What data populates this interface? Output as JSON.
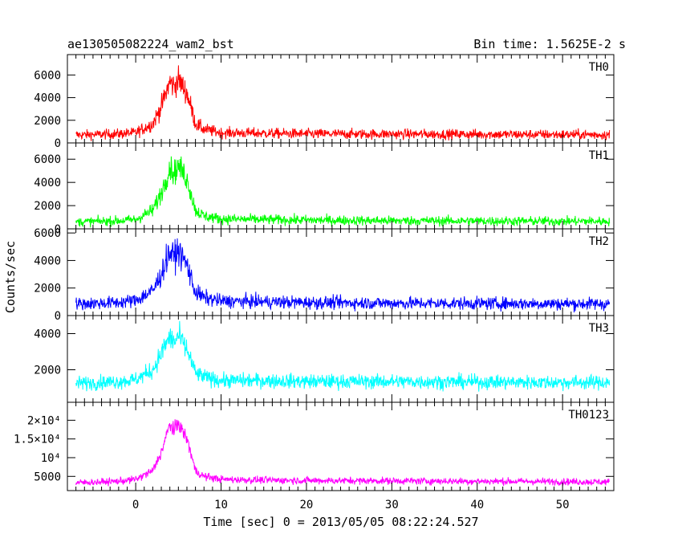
{
  "chart_data": {
    "type": "line",
    "title": "ae130505082224_wam2_bst",
    "bin_time_label": "Bin time: 1.5625E-2 s",
    "xlabel": "Time [sec] 0 = 2013/05/05 08:22:24.527",
    "ylabel": "Counts/sec",
    "xlim": [
      -8,
      56
    ],
    "x_ticks": [
      0,
      10,
      20,
      30,
      40,
      50
    ],
    "x_tick_labels": [
      "0",
      "10",
      "20",
      "30",
      "40",
      "50"
    ],
    "panels": [
      {
        "name": "TH0",
        "color": "#ff0000",
        "ylim": [
          0,
          7800
        ],
        "y_ticks": [
          0,
          2000,
          4000,
          6000
        ],
        "y_tick_labels": [
          "0",
          "2000",
          "4000",
          "6000"
        ],
        "baseline": 750,
        "peak": 5200,
        "noise": 330,
        "x": [
          -7,
          -4,
          -2,
          0,
          2,
          3,
          3.5,
          4,
          4.5,
          5,
          5.5,
          6,
          6.5,
          7,
          8,
          10,
          15,
          20,
          30,
          40,
          50,
          55.5
        ],
        "y": [
          700,
          750,
          800,
          900,
          1700,
          3200,
          4300,
          5400,
          5000,
          5600,
          5000,
          4400,
          3100,
          1700,
          1200,
          900,
          850,
          800,
          780,
          760,
          740,
          720
        ]
      },
      {
        "name": "TH1",
        "color": "#00ff00",
        "ylim": [
          0,
          7400
        ],
        "y_ticks": [
          0,
          2000,
          4000,
          6000
        ],
        "y_tick_labels": [
          "0",
          "2000",
          "4000",
          "6000"
        ],
        "baseline": 650,
        "peak": 5100,
        "noise": 300,
        "x": [
          -7,
          -4,
          -2,
          0,
          2,
          3,
          3.5,
          4,
          4.5,
          5,
          5.5,
          6,
          6.5,
          7,
          8,
          10,
          15,
          20,
          30,
          40,
          50,
          55.5
        ],
        "y": [
          600,
          650,
          700,
          800,
          1600,
          3100,
          4200,
          5300,
          4800,
          5400,
          4900,
          4300,
          3000,
          1600,
          1100,
          850,
          800,
          750,
          700,
          680,
          660,
          650
        ]
      },
      {
        "name": "TH2",
        "color": "#0000ff",
        "ylim": [
          0,
          6300
        ],
        "y_ticks": [
          0,
          2000,
          4000,
          6000
        ],
        "y_tick_labels": [
          "0",
          "2000",
          "4000",
          "6000"
        ],
        "baseline": 900,
        "peak": 4500,
        "noise": 350,
        "x": [
          -7,
          -4,
          -2,
          0,
          2,
          3,
          3.5,
          4,
          4.5,
          5,
          5.5,
          6,
          6.5,
          7,
          8,
          10,
          15,
          20,
          30,
          40,
          50,
          55.5
        ],
        "y": [
          850,
          900,
          950,
          1100,
          1800,
          3000,
          3900,
          4600,
          4300,
          4700,
          4200,
          3700,
          2700,
          1700,
          1300,
          1050,
          1000,
          950,
          900,
          880,
          860,
          850
        ]
      },
      {
        "name": "TH3",
        "color": "#00ffff",
        "ylim": [
          200,
          5000
        ],
        "y_ticks": [
          2000,
          4000
        ],
        "y_tick_labels": [
          "2000",
          "4000"
        ],
        "baseline": 1300,
        "peak": 3800,
        "noise": 300,
        "x": [
          -7,
          -4,
          -2,
          0,
          2,
          3,
          3.5,
          4,
          4.5,
          5,
          5.5,
          6,
          6.5,
          7,
          8,
          10,
          15,
          20,
          30,
          40,
          50,
          55.5
        ],
        "y": [
          1250,
          1300,
          1350,
          1450,
          2000,
          2900,
          3400,
          3800,
          3500,
          3900,
          3500,
          3100,
          2500,
          1800,
          1600,
          1400,
          1400,
          1350,
          1350,
          1320,
          1300,
          1300
        ]
      },
      {
        "name": "TH0123",
        "color": "#ff00ff",
        "ylim": [
          1200,
          24800
        ],
        "y_ticks": [
          5000,
          10000,
          15000,
          20000
        ],
        "y_tick_labels": [
          "5000",
          "10⁴",
          "1.5×10⁴",
          "2×10⁴"
        ],
        "baseline": 3600,
        "peak": 19000,
        "noise": 700,
        "x": [
          -7,
          -4,
          -2,
          0,
          2,
          3,
          3.5,
          4,
          4.5,
          5,
          5.5,
          6,
          6.5,
          7,
          8,
          10,
          15,
          20,
          30,
          40,
          50,
          55.5
        ],
        "y": [
          3300,
          3500,
          3700,
          4200,
          6500,
          11500,
          15000,
          19000,
          17000,
          19500,
          17000,
          15000,
          11000,
          6500,
          5000,
          4200,
          4000,
          3900,
          3800,
          3700,
          3600,
          3500
        ]
      }
    ]
  }
}
